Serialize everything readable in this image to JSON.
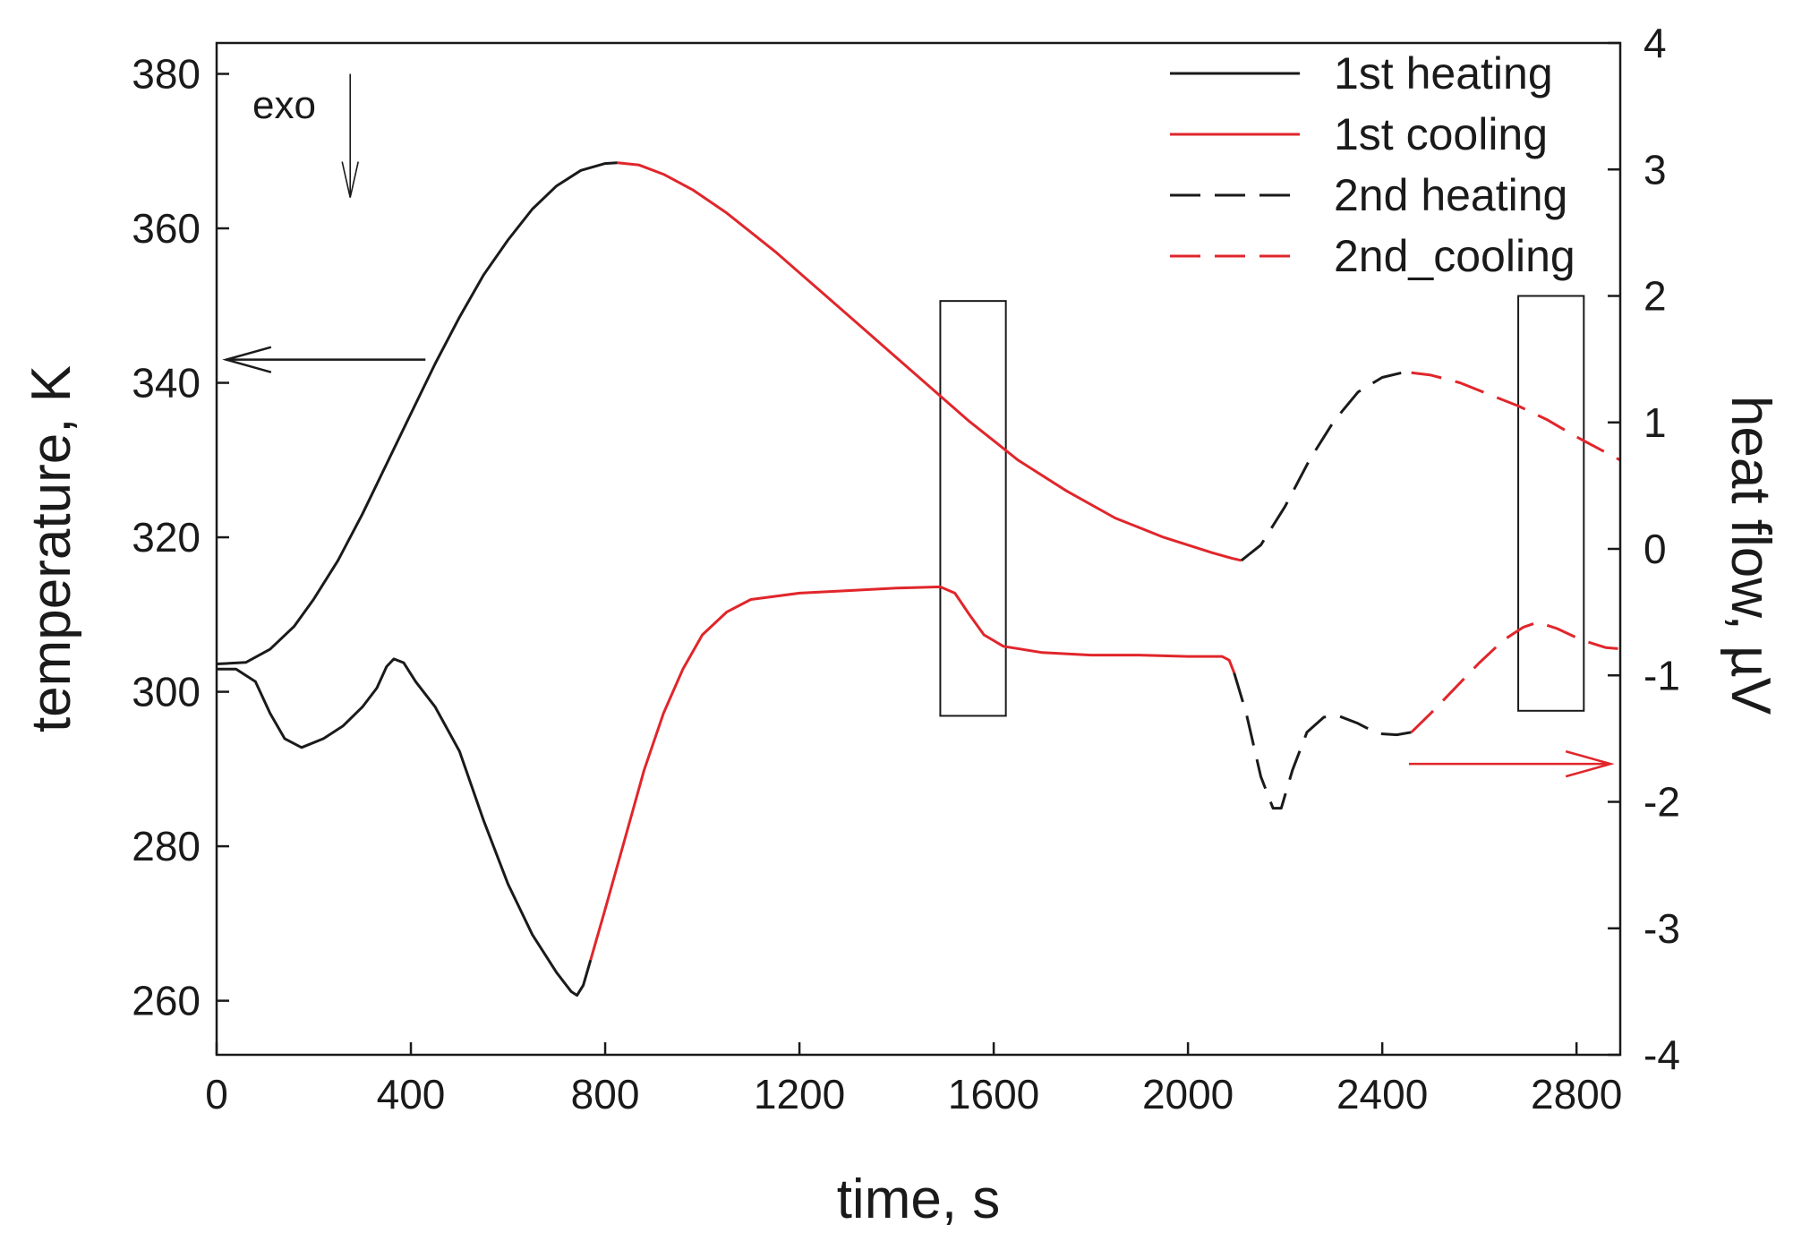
{
  "chart_data": {
    "type": "line",
    "xlabel": "time, s",
    "ylabel_left": "temperature, K",
    "ylabel_right": "heat flow, µV",
    "xlim": [
      0,
      2890
    ],
    "ylim_left": [
      253,
      384
    ],
    "ylim_right": [
      -4,
      4
    ],
    "x_ticks": [
      0,
      400,
      800,
      1200,
      1600,
      2000,
      2400,
      2800
    ],
    "y_left_ticks": [
      260,
      280,
      300,
      320,
      340,
      360,
      380
    ],
    "y_right_ticks": [
      -4,
      -3,
      -2,
      -1,
      0,
      1,
      2,
      3,
      4
    ],
    "grid": false,
    "legend_position": "top-right",
    "legend": [
      {
        "label": "1st heating",
        "color": "#1a1a1a",
        "dash": "solid"
      },
      {
        "label": "1st cooling",
        "color": "#e0262b",
        "dash": "solid"
      },
      {
        "label": "2nd heating",
        "color": "#1a1a1a",
        "dash": "dashed"
      },
      {
        "label": "2nd_cooling",
        "color": "#e0262b",
        "dash": "dashed"
      }
    ],
    "series": [
      {
        "name": "1st heating",
        "quantity": "temperature",
        "axis": "left",
        "color": "#1a1a1a",
        "dash": "solid",
        "points": [
          [
            0,
            303.6
          ],
          [
            60,
            303.8
          ],
          [
            110,
            305.5
          ],
          [
            160,
            308.5
          ],
          [
            200,
            312
          ],
          [
            250,
            317
          ],
          [
            300,
            323
          ],
          [
            350,
            329.5
          ],
          [
            400,
            336
          ],
          [
            450,
            342.5
          ],
          [
            500,
            348.5
          ],
          [
            550,
            354
          ],
          [
            600,
            358.5
          ],
          [
            650,
            362.5
          ],
          [
            700,
            365.5
          ],
          [
            750,
            367.5
          ],
          [
            800,
            368.4
          ],
          [
            825,
            368.5
          ]
        ]
      },
      {
        "name": "1st cooling",
        "quantity": "temperature",
        "axis": "left",
        "color": "#e0262b",
        "dash": "solid",
        "points": [
          [
            825,
            368.5
          ],
          [
            870,
            368.2
          ],
          [
            920,
            367
          ],
          [
            980,
            365
          ],
          [
            1050,
            362
          ],
          [
            1150,
            357
          ],
          [
            1250,
            351.5
          ],
          [
            1350,
            346
          ],
          [
            1450,
            340.5
          ],
          [
            1550,
            335
          ],
          [
            1600,
            332.5
          ],
          [
            1650,
            330
          ],
          [
            1750,
            326
          ],
          [
            1850,
            322.5
          ],
          [
            1950,
            320
          ],
          [
            2050,
            318
          ],
          [
            2090,
            317.3
          ],
          [
            2110,
            317
          ]
        ]
      },
      {
        "name": "2nd heating",
        "quantity": "temperature",
        "axis": "left",
        "color": "#1a1a1a",
        "dash": "dashed",
        "points": [
          [
            2110,
            317
          ],
          [
            2150,
            319
          ],
          [
            2200,
            324
          ],
          [
            2250,
            330
          ],
          [
            2300,
            335
          ],
          [
            2350,
            338.8
          ],
          [
            2400,
            340.7
          ],
          [
            2440,
            341.3
          ],
          [
            2460,
            341.3
          ]
        ]
      },
      {
        "name": "2nd_cooling",
        "quantity": "temperature",
        "axis": "left",
        "color": "#e0262b",
        "dash": "dashed",
        "points": [
          [
            2460,
            341.3
          ],
          [
            2500,
            341
          ],
          [
            2560,
            340
          ],
          [
            2620,
            338.5
          ],
          [
            2680,
            337
          ],
          [
            2740,
            335.2
          ],
          [
            2800,
            333
          ],
          [
            2860,
            331
          ],
          [
            2890,
            330
          ]
        ]
      },
      {
        "name": "1st heating",
        "quantity": "heat flow",
        "axis": "right",
        "color": "#1a1a1a",
        "dash": "solid",
        "points": [
          [
            0,
            -0.95
          ],
          [
            40,
            -0.95
          ],
          [
            80,
            -1.05
          ],
          [
            110,
            -1.3
          ],
          [
            140,
            -1.5
          ],
          [
            175,
            -1.57
          ],
          [
            220,
            -1.5
          ],
          [
            260,
            -1.4
          ],
          [
            300,
            -1.25
          ],
          [
            330,
            -1.1
          ],
          [
            350,
            -0.93
          ],
          [
            365,
            -0.87
          ],
          [
            385,
            -0.9
          ],
          [
            410,
            -1.05
          ],
          [
            450,
            -1.25
          ],
          [
            500,
            -1.6
          ],
          [
            550,
            -2.15
          ],
          [
            600,
            -2.65
          ],
          [
            650,
            -3.05
          ],
          [
            700,
            -3.35
          ],
          [
            730,
            -3.5
          ],
          [
            742,
            -3.53
          ],
          [
            755,
            -3.45
          ],
          [
            770,
            -3.25
          ]
        ]
      },
      {
        "name": "1st cooling",
        "quantity": "heat flow",
        "axis": "right",
        "color": "#e0262b",
        "dash": "solid",
        "points": [
          [
            770,
            -3.25
          ],
          [
            800,
            -2.85
          ],
          [
            840,
            -2.3
          ],
          [
            880,
            -1.75
          ],
          [
            920,
            -1.3
          ],
          [
            960,
            -0.95
          ],
          [
            1000,
            -0.68
          ],
          [
            1050,
            -0.5
          ],
          [
            1100,
            -0.4
          ],
          [
            1200,
            -0.35
          ],
          [
            1300,
            -0.33
          ],
          [
            1400,
            -0.31
          ],
          [
            1490,
            -0.3
          ],
          [
            1520,
            -0.35
          ],
          [
            1550,
            -0.52
          ],
          [
            1580,
            -0.68
          ],
          [
            1620,
            -0.77
          ],
          [
            1700,
            -0.82
          ],
          [
            1800,
            -0.84
          ],
          [
            1900,
            -0.84
          ],
          [
            2000,
            -0.85
          ],
          [
            2070,
            -0.85
          ],
          [
            2085,
            -0.88
          ],
          [
            2095,
            -0.98
          ]
        ]
      },
      {
        "name": "2nd heating",
        "quantity": "heat flow",
        "axis": "right",
        "color": "#1a1a1a",
        "dash": "dashed",
        "points": [
          [
            2095,
            -0.98
          ],
          [
            2120,
            -1.3
          ],
          [
            2150,
            -1.8
          ],
          [
            2175,
            -2.05
          ],
          [
            2192,
            -2.05
          ],
          [
            2215,
            -1.75
          ],
          [
            2245,
            -1.45
          ],
          [
            2280,
            -1.33
          ],
          [
            2310,
            -1.32
          ],
          [
            2350,
            -1.38
          ],
          [
            2390,
            -1.46
          ],
          [
            2430,
            -1.47
          ],
          [
            2460,
            -1.45
          ]
        ]
      },
      {
        "name": "2nd_cooling",
        "quantity": "heat flow",
        "axis": "right",
        "color": "#e0262b",
        "dash": "dashed",
        "points": [
          [
            2460,
            -1.45
          ],
          [
            2500,
            -1.3
          ],
          [
            2550,
            -1.1
          ],
          [
            2600,
            -0.9
          ],
          [
            2650,
            -0.72
          ],
          [
            2690,
            -0.62
          ],
          [
            2720,
            -0.58
          ],
          [
            2760,
            -0.63
          ],
          [
            2810,
            -0.72
          ],
          [
            2860,
            -0.78
          ],
          [
            2890,
            -0.79
          ]
        ]
      }
    ],
    "highlight_boxes": [
      {
        "x_range": [
          1490,
          1625
        ],
        "y_range_right": [
          -1.32,
          1.96
        ]
      },
      {
        "x_range": [
          2680,
          2815
        ],
        "y_range_right": [
          -1.28,
          2.0
        ]
      }
    ],
    "annotations": {
      "exo_label": "exo",
      "exo_arrow": {
        "x": 275,
        "y_left_from": 380,
        "y_left_to": 364
      },
      "left_axis_arrow": {
        "y_left": 343,
        "x_from": 430,
        "x_to": 20
      },
      "right_axis_arrow": {
        "y_right": -1.7,
        "x_from": 2455,
        "x_to": 2870
      }
    }
  }
}
